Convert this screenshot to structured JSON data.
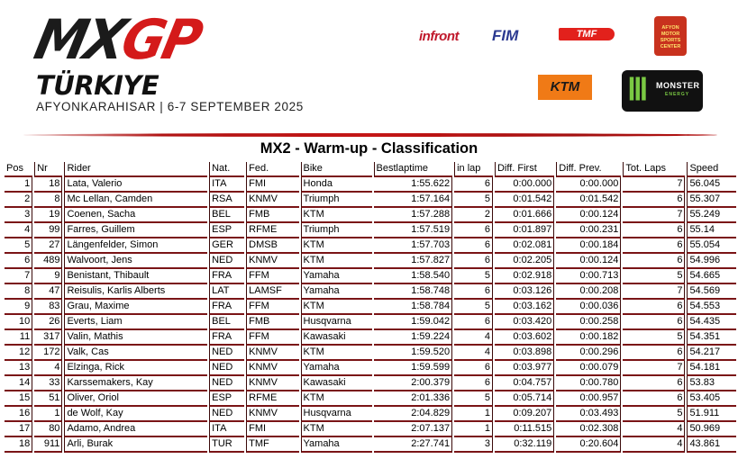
{
  "header": {
    "brand": {
      "mx": "MX",
      "gp": "GP"
    },
    "country": "TÜRKIYE",
    "subtitle": "AFYONKARAHISAR | 6-7 SEPTEMBER 2025",
    "sponsors": {
      "infront": "infront",
      "fim": "FIM",
      "tmf": "TMF",
      "amsf": "AFYON MOTOR SPORTS CENTER",
      "ktm": "KTM",
      "monster": "MONSTER",
      "monster_sub": "ENERGY"
    },
    "accent_color": "#c41616"
  },
  "title": "MX2 - Warm-up - Classification",
  "columns": [
    "Pos",
    "Nr",
    "Rider",
    "Nat.",
    "Fed.",
    "Bike",
    "Bestlaptime",
    "in lap",
    "Diff. First",
    "Diff. Prev.",
    "Tot. Laps",
    "Speed"
  ],
  "rows": [
    [
      "1",
      "18",
      "Lata, Valerio",
      "ITA",
      "FMI",
      "Honda",
      "1:55.622",
      "6",
      "0:00.000",
      "0:00.000",
      "7",
      "56.045"
    ],
    [
      "2",
      "8",
      "Mc Lellan, Camden",
      "RSA",
      "KNMV",
      "Triumph",
      "1:57.164",
      "5",
      "0:01.542",
      "0:01.542",
      "6",
      "55.307"
    ],
    [
      "3",
      "19",
      "Coenen, Sacha",
      "BEL",
      "FMB",
      "KTM",
      "1:57.288",
      "2",
      "0:01.666",
      "0:00.124",
      "7",
      "55.249"
    ],
    [
      "4",
      "99",
      "Farres, Guillem",
      "ESP",
      "RFME",
      "Triumph",
      "1:57.519",
      "6",
      "0:01.897",
      "0:00.231",
      "6",
      "55.14"
    ],
    [
      "5",
      "27",
      "Längenfelder, Simon",
      "GER",
      "DMSB",
      "KTM",
      "1:57.703",
      "6",
      "0:02.081",
      "0:00.184",
      "6",
      "55.054"
    ],
    [
      "6",
      "489",
      "Walvoort, Jens",
      "NED",
      "KNMV",
      "KTM",
      "1:57.827",
      "6",
      "0:02.205",
      "0:00.124",
      "6",
      "54.996"
    ],
    [
      "7",
      "9",
      "Benistant, Thibault",
      "FRA",
      "FFM",
      "Yamaha",
      "1:58.540",
      "5",
      "0:02.918",
      "0:00.713",
      "5",
      "54.665"
    ],
    [
      "8",
      "47",
      "Reisulis, Karlis Alberts",
      "LAT",
      "LAMSF",
      "Yamaha",
      "1:58.748",
      "6",
      "0:03.126",
      "0:00.208",
      "7",
      "54.569"
    ],
    [
      "9",
      "83",
      "Grau, Maxime",
      "FRA",
      "FFM",
      "KTM",
      "1:58.784",
      "5",
      "0:03.162",
      "0:00.036",
      "6",
      "54.553"
    ],
    [
      "10",
      "26",
      "Everts, Liam",
      "BEL",
      "FMB",
      "Husqvarna",
      "1:59.042",
      "6",
      "0:03.420",
      "0:00.258",
      "6",
      "54.435"
    ],
    [
      "11",
      "317",
      "Valin, Mathis",
      "FRA",
      "FFM",
      "Kawasaki",
      "1:59.224",
      "4",
      "0:03.602",
      "0:00.182",
      "5",
      "54.351"
    ],
    [
      "12",
      "172",
      "Valk, Cas",
      "NED",
      "KNMV",
      "KTM",
      "1:59.520",
      "4",
      "0:03.898",
      "0:00.296",
      "6",
      "54.217"
    ],
    [
      "13",
      "4",
      "Elzinga, Rick",
      "NED",
      "KNMV",
      "Yamaha",
      "1:59.599",
      "6",
      "0:03.977",
      "0:00.079",
      "7",
      "54.181"
    ],
    [
      "14",
      "33",
      "Karssemakers, Kay",
      "NED",
      "KNMV",
      "Kawasaki",
      "2:00.379",
      "6",
      "0:04.757",
      "0:00.780",
      "6",
      "53.83"
    ],
    [
      "15",
      "51",
      "Oliver, Oriol",
      "ESP",
      "RFME",
      "KTM",
      "2:01.336",
      "5",
      "0:05.714",
      "0:00.957",
      "6",
      "53.405"
    ],
    [
      "16",
      "1",
      "de Wolf, Kay",
      "NED",
      "KNMV",
      "Husqvarna",
      "2:04.829",
      "1",
      "0:09.207",
      "0:03.493",
      "5",
      "51.911"
    ],
    [
      "17",
      "80",
      "Adamo, Andrea",
      "ITA",
      "FMI",
      "KTM",
      "2:07.137",
      "1",
      "0:11.515",
      "0:02.308",
      "4",
      "50.969"
    ],
    [
      "18",
      "911",
      "Arli, Burak",
      "TUR",
      "TMF",
      "Yamaha",
      "2:27.741",
      "3",
      "0:32.119",
      "0:20.604",
      "4",
      "43.861"
    ]
  ]
}
